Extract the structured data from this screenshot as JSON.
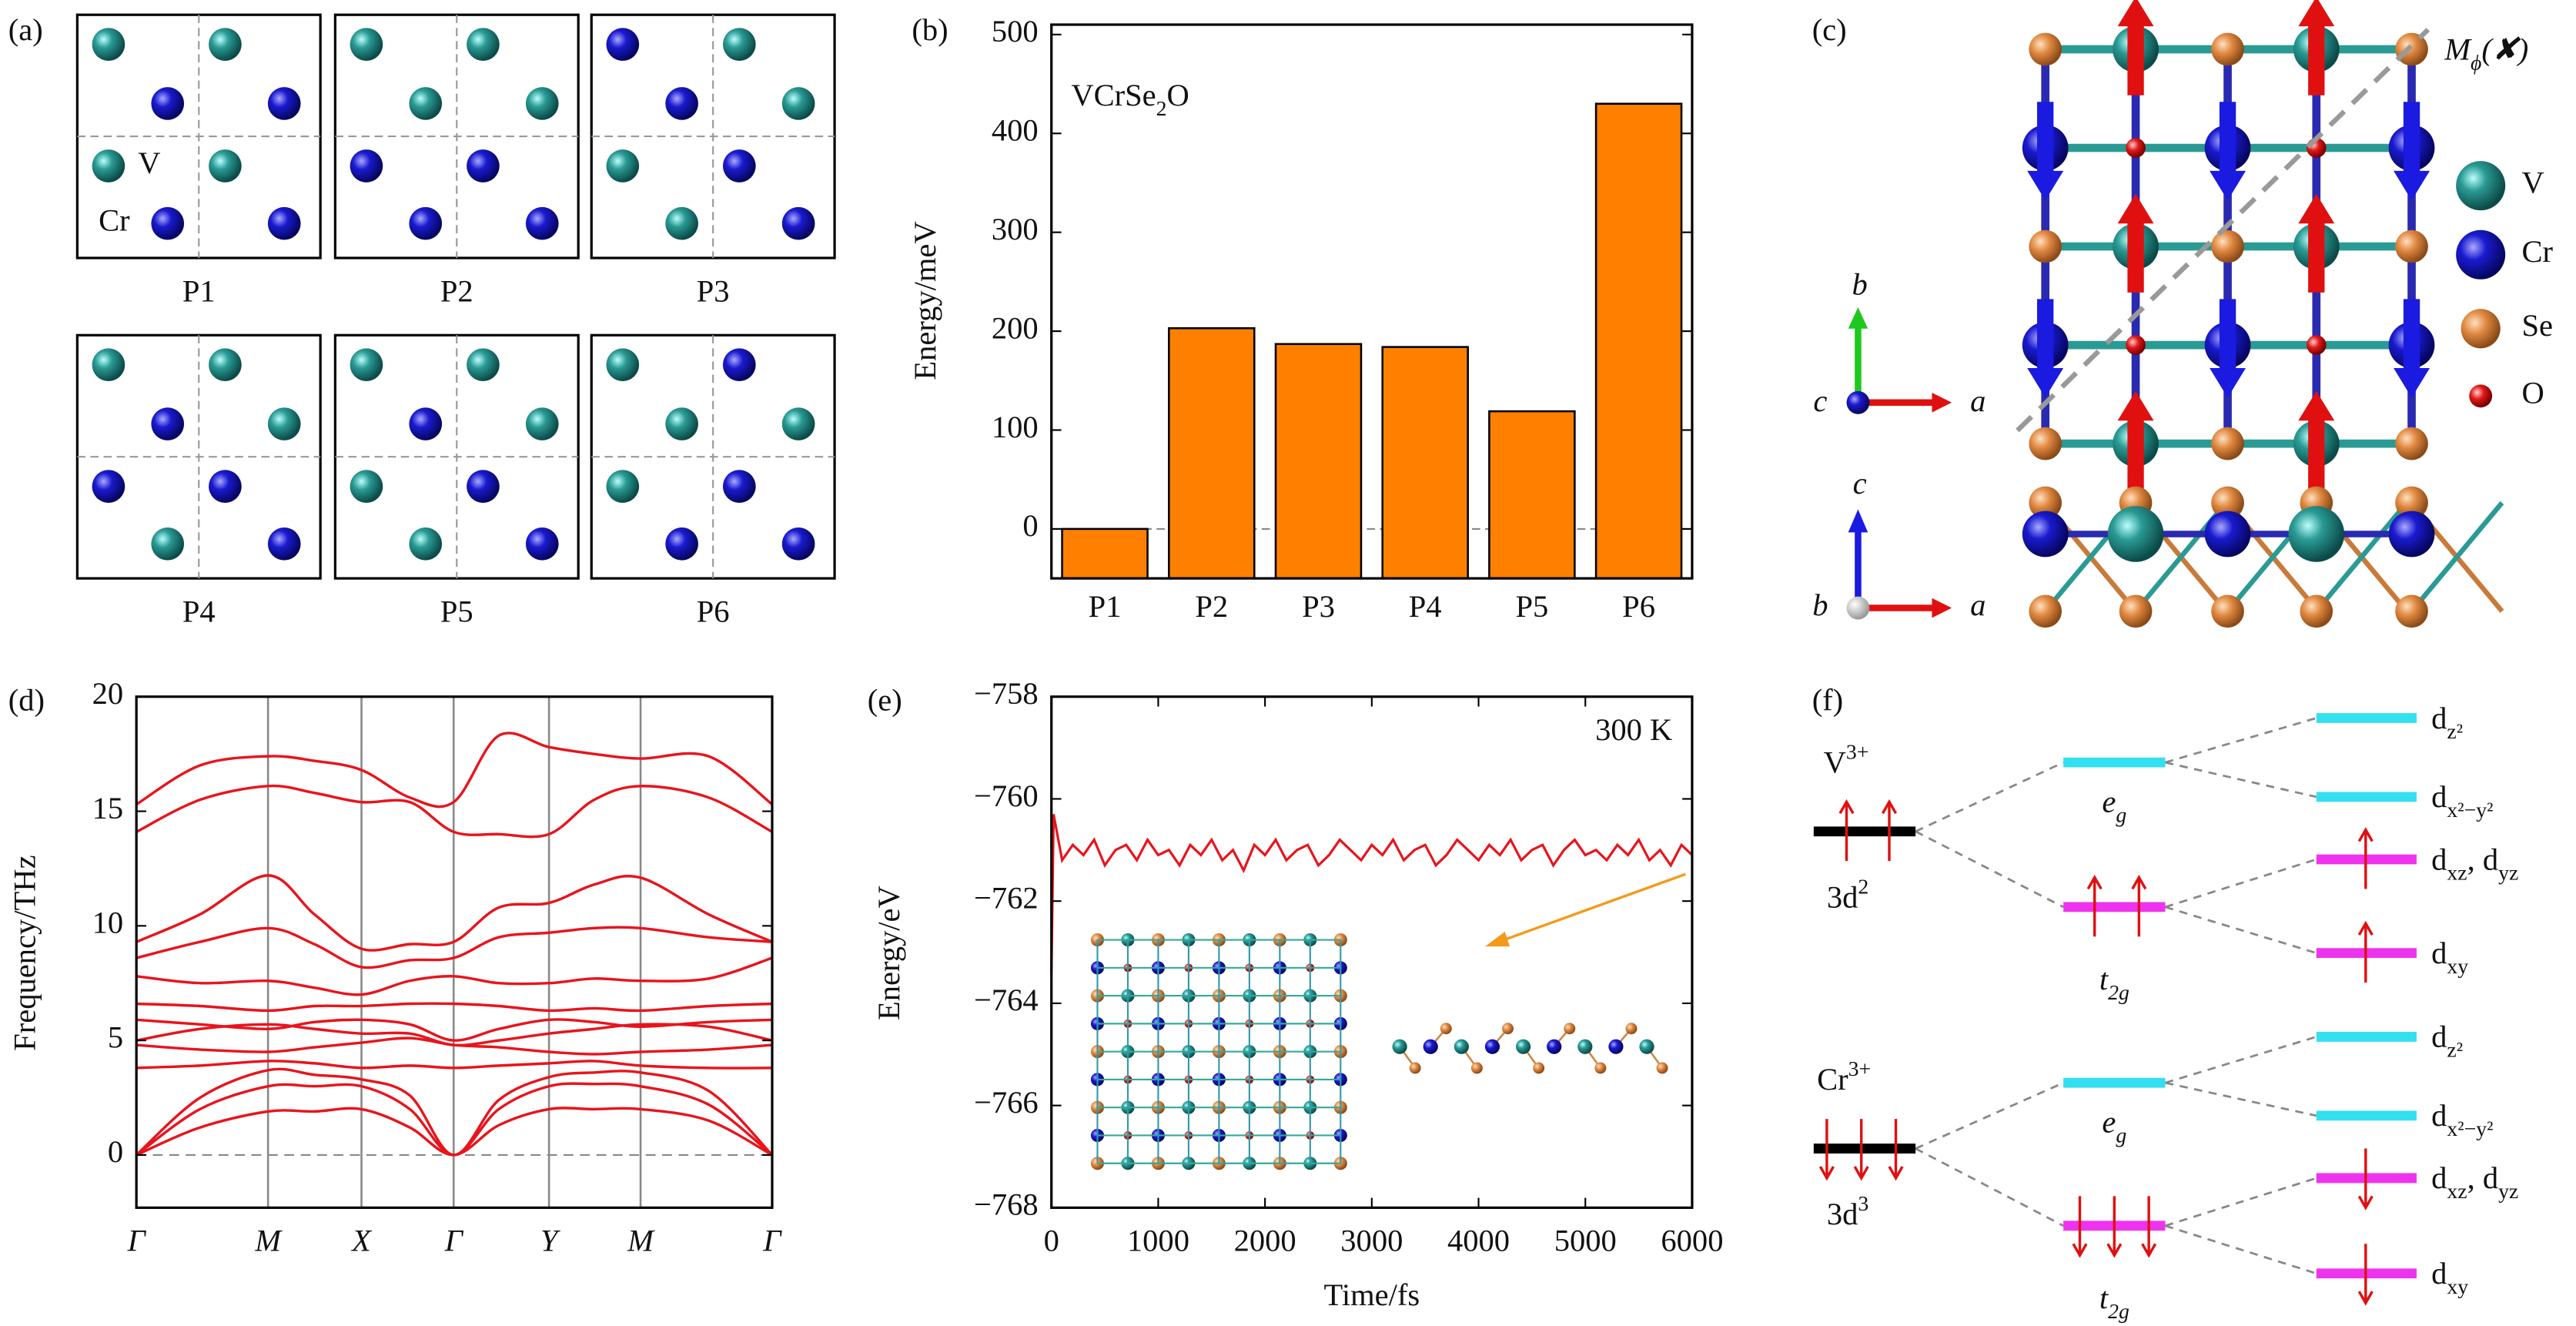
{
  "panel_labels": [
    "(a)",
    "(b)",
    "(c)",
    "(d)",
    "(e)",
    "(f)"
  ],
  "panel_a": {
    "configs": [
      "P1",
      "P2",
      "P3",
      "P4",
      "P5",
      "P6"
    ],
    "atoms": [
      "V",
      "Cr"
    ]
  },
  "chart_data": [
    {
      "type": "bar",
      "text": [
        "VCrSe",
        "2",
        "O"
      ],
      "ylabel": "Energy/meV",
      "categories": [
        "P1",
        "P2",
        "P3",
        "P4",
        "P5",
        "P6"
      ],
      "values": [
        0,
        203,
        187,
        184,
        119,
        430
      ],
      "color": "#ff8000",
      "ylim": [
        -50,
        510
      ],
      "yticks": [
        0,
        100,
        200,
        300,
        400,
        500
      ],
      "grid": false
    },
    {
      "type": "bands",
      "ylabel": "Frequency/THz",
      "color": "#e8141c",
      "x": [
        0,
        0.1,
        0.207,
        0.28,
        0.354,
        0.43,
        0.499,
        0.57,
        0.649,
        0.72,
        0.793,
        0.9,
        1
      ],
      "xlim": [
        0,
        1
      ],
      "xticks": [
        {
          "value": 0,
          "label": "Γ"
        },
        {
          "value": 0.207,
          "label": "M"
        },
        {
          "value": 0.354,
          "label": "X"
        },
        {
          "value": 0.499,
          "label": "Γ"
        },
        {
          "value": 0.649,
          "label": "Y"
        },
        {
          "value": 0.793,
          "label": "M"
        },
        {
          "value": 1,
          "label": "Γ"
        }
      ],
      "ylim": [
        -2.3,
        20
      ],
      "yticks": [
        0,
        5,
        10,
        15,
        20
      ],
      "grid": true,
      "series": [
        {
          "values": [
            15.3,
            17.0,
            17.4,
            17.2,
            16.8,
            15.6,
            15.4,
            18.3,
            17.8,
            17.5,
            17.3,
            17.4,
            15.3
          ]
        },
        {
          "values": [
            14.1,
            15.5,
            16.1,
            15.8,
            15.4,
            15.4,
            14.1,
            14.0,
            14.0,
            15.5,
            16.1,
            15.6,
            14.1
          ]
        },
        {
          "values": [
            9.3,
            10.5,
            12.2,
            10.5,
            9.0,
            9.2,
            9.3,
            10.8,
            11.0,
            11.8,
            12.1,
            10.5,
            9.3
          ]
        },
        {
          "values": [
            8.6,
            9.3,
            9.9,
            9.2,
            8.2,
            8.5,
            8.6,
            9.5,
            9.7,
            9.9,
            9.9,
            9.5,
            9.3
          ]
        },
        {
          "values": [
            7.8,
            7.5,
            7.6,
            7.3,
            7.0,
            7.6,
            7.8,
            7.5,
            7.5,
            7.7,
            7.6,
            7.7,
            8.6
          ]
        },
        {
          "values": [
            6.6,
            6.5,
            6.3,
            6.5,
            6.5,
            6.6,
            6.6,
            6.5,
            6.3,
            6.4,
            6.3,
            6.5,
            6.6
          ]
        },
        {
          "values": [
            5.9,
            5.7,
            5.5,
            5.8,
            5.9,
            5.7,
            5.0,
            5.5,
            5.9,
            5.8,
            5.6,
            5.8,
            5.9
          ]
        },
        {
          "values": [
            5.0,
            5.5,
            5.7,
            5.5,
            5.3,
            5.3,
            4.8,
            5.0,
            5.3,
            5.5,
            5.7,
            5.6,
            5.0
          ]
        },
        {
          "values": [
            4.8,
            4.6,
            4.5,
            4.7,
            4.9,
            5.1,
            4.8,
            4.7,
            4.5,
            4.4,
            4.5,
            4.6,
            4.8
          ]
        },
        {
          "values": [
            3.8,
            3.9,
            4.1,
            4.0,
            3.8,
            3.9,
            3.8,
            3.9,
            4.0,
            4.1,
            3.9,
            3.8,
            3.8
          ]
        },
        {
          "values": [
            0,
            2.5,
            3.7,
            3.5,
            3.3,
            2.6,
            0,
            2.4,
            3.4,
            3.6,
            3.6,
            2.8,
            0
          ]
        },
        {
          "values": [
            0,
            2.0,
            3.0,
            3.0,
            3.0,
            2.0,
            0,
            2.0,
            3.0,
            3.1,
            3.0,
            2.2,
            0
          ]
        },
        {
          "values": [
            0,
            1.2,
            1.9,
            1.9,
            2.0,
            1.2,
            0,
            1.3,
            2.0,
            2.0,
            2.0,
            1.5,
            0
          ]
        }
      ]
    },
    {
      "type": "line",
      "annotation": "300 K",
      "xlabel": "Time/fs",
      "ylabel": "Energy/eV",
      "color": "#e8141c",
      "x": [
        0,
        20,
        100,
        200,
        300,
        400,
        500,
        600,
        700,
        800,
        900,
        1000,
        1100,
        1200,
        1300,
        1400,
        1500,
        1600,
        1700,
        1800,
        1900,
        2000,
        2100,
        2200,
        2300,
        2400,
        2500,
        2600,
        2700,
        2800,
        2900,
        3000,
        3100,
        3200,
        3300,
        3400,
        3500,
        3600,
        3700,
        3800,
        3900,
        4000,
        4100,
        4200,
        4300,
        4400,
        4500,
        4600,
        4700,
        4800,
        4900,
        5000,
        5100,
        5200,
        5300,
        5400,
        5500,
        5600,
        5700,
        5800,
        5900,
        6000
      ],
      "values": [
        -763.4,
        -760.3,
        -761.2,
        -760.9,
        -761.1,
        -760.8,
        -761.3,
        -761.0,
        -760.9,
        -761.2,
        -760.8,
        -761.1,
        -761.0,
        -761.3,
        -760.9,
        -761.1,
        -760.8,
        -761.2,
        -761.0,
        -761.4,
        -760.9,
        -761.1,
        -760.8,
        -761.2,
        -761.0,
        -760.9,
        -761.3,
        -761.1,
        -760.8,
        -761.0,
        -761.2,
        -760.9,
        -761.1,
        -760.8,
        -761.2,
        -761.0,
        -760.9,
        -761.3,
        -761.1,
        -760.8,
        -761.0,
        -761.2,
        -760.9,
        -761.1,
        -760.8,
        -761.2,
        -761.0,
        -760.9,
        -761.3,
        -761.0,
        -760.8,
        -761.1,
        -761.0,
        -761.2,
        -760.9,
        -761.1,
        -760.8,
        -761.2,
        -761.0,
        -761.3,
        -760.9,
        -761.1
      ],
      "xlim": [
        0,
        6000
      ],
      "xticks": [
        0,
        1000,
        2000,
        3000,
        4000,
        5000,
        6000
      ],
      "ylim": [
        -768,
        -758
      ],
      "yticks": [
        {
          "value": -768,
          "label": "−768"
        },
        {
          "value": -766,
          "label": "−766"
        },
        {
          "value": -764,
          "label": "−764"
        },
        {
          "value": -762,
          "label": "−762"
        },
        {
          "value": -760,
          "label": "−760"
        },
        {
          "value": -758,
          "label": "−758"
        }
      ],
      "grid": false
    }
  ],
  "panel_c": {
    "mirror": [
      "M",
      "ϕ",
      "(✘)"
    ],
    "axes_top": [
      "b",
      "c",
      "a"
    ],
    "axes_bottom": [
      "c",
      "b",
      "a"
    ],
    "legend": [
      "V",
      "Cr",
      "Se",
      "O"
    ]
  },
  "panel_f": {
    "ions": [
      {
        "name": [
          "V",
          "3+"
        ],
        "config": [
          "3d",
          "2"
        ]
      },
      {
        "name": [
          "Cr",
          "3+"
        ],
        "config": [
          "3d",
          "3"
        ]
      }
    ],
    "eg": [
      "e",
      "g"
    ],
    "t2g": [
      "t",
      "2g"
    ],
    "levels": [
      [
        "d",
        "z²"
      ],
      [
        "d",
        "x²−y²"
      ],
      [
        "d",
        "xz",
        ", d",
        "yz"
      ],
      [
        "d",
        "xy"
      ]
    ]
  }
}
